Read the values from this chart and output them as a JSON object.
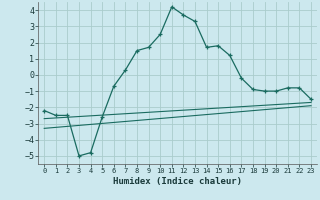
{
  "xlabel": "Humidex (Indice chaleur)",
  "background_color": "#cce8ee",
  "grid_color": "#aacccc",
  "line_color": "#1a6b60",
  "xlim": [
    -0.5,
    23.5
  ],
  "ylim": [
    -5.5,
    4.5
  ],
  "xticks": [
    0,
    1,
    2,
    3,
    4,
    5,
    6,
    7,
    8,
    9,
    10,
    11,
    12,
    13,
    14,
    15,
    16,
    17,
    18,
    19,
    20,
    21,
    22,
    23
  ],
  "yticks": [
    -5,
    -4,
    -3,
    -2,
    -1,
    0,
    1,
    2,
    3,
    4
  ],
  "line1_x": [
    0,
    1,
    2,
    3,
    4,
    5,
    6,
    7,
    8,
    9,
    10,
    11,
    12,
    13,
    14,
    15,
    16,
    17,
    18,
    19,
    20,
    21,
    22,
    23
  ],
  "line1_y": [
    -2.2,
    -2.5,
    -2.5,
    -5.0,
    -4.8,
    -2.6,
    -0.7,
    0.3,
    1.5,
    1.7,
    2.5,
    4.2,
    3.7,
    3.3,
    1.7,
    1.8,
    1.2,
    -0.2,
    -0.9,
    -1.0,
    -1.0,
    -0.8,
    -0.8,
    -1.5
  ],
  "line2_x": [
    0,
    23
  ],
  "line2_y": [
    -2.7,
    -1.7
  ],
  "line3_x": [
    0,
    23
  ],
  "line3_y": [
    -3.3,
    -1.9
  ]
}
